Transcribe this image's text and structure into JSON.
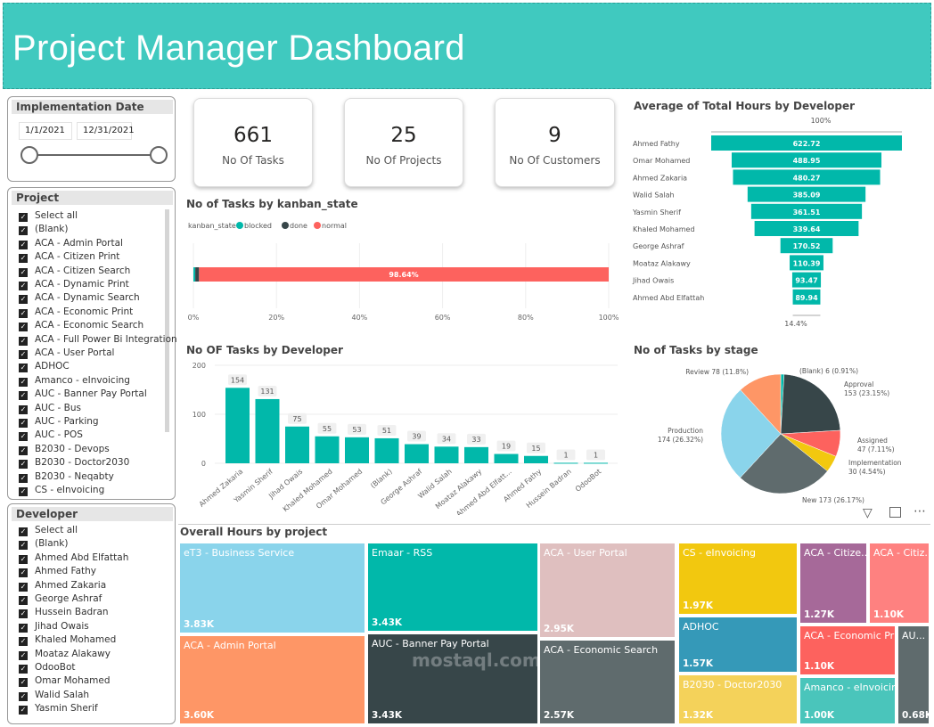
{
  "header": {
    "title": "Project Manager Dashboard",
    "color": "#40c9bf"
  },
  "date_slicer": {
    "title": "Implementation Date",
    "start": "1/1/2021",
    "end": "12/31/2021"
  },
  "project_slicer": {
    "title": "Project",
    "items": [
      "Select all",
      "(Blank)",
      "ACA - Admin Portal",
      "ACA - Citizen Print",
      "ACA - Citizen Search",
      "ACA - Dynamic Print",
      "ACA - Dynamic Search",
      "ACA - Economic Print",
      "ACA - Economic Search",
      "ACA - Full Power Bi Integration",
      "ACA - User Portal",
      "ADHOC",
      "Amanco - eInvoicing",
      "AUC - Banner Pay Portal",
      "AUC - Bus",
      "AUC - Parking",
      "AUC - POS",
      "B2030 - Devops",
      "B2030 - Doctor2030",
      "B2030 - Neqabty",
      "CS - eInvoicing"
    ]
  },
  "developer_slicer": {
    "title": "Developer",
    "items": [
      "Select all",
      "(Blank)",
      "Ahmed Abd Elfattah",
      "Ahmed Fathy",
      "Ahmed Zakaria",
      "George Ashraf",
      "Hussein Badran",
      "Jihad Owais",
      "Khaled Mohamed",
      "Moataz Alakawy",
      "OdooBot",
      "Omar Mohamed",
      "Walid Salah",
      "Yasmin Sherif"
    ]
  },
  "kpis": [
    {
      "value": "661",
      "label": "No Of Tasks"
    },
    {
      "value": "25",
      "label": "No Of Projects"
    },
    {
      "value": "9",
      "label": "No Of Customers"
    }
  ],
  "chart_data": [
    {
      "type": "bar",
      "orientation": "horizontal-stacked-100",
      "title": "No of Tasks by kanban_state",
      "legend_title": "kanban_state",
      "legend_position": "top-left",
      "series": [
        {
          "name": "blocked",
          "value_pct": 0.45,
          "color": "#01b8aa"
        },
        {
          "name": "done",
          "value_pct": 0.91,
          "color": "#374649"
        },
        {
          "name": "normal",
          "value_pct": 98.64,
          "color": "#fd625e"
        }
      ],
      "data_label": "98.64%",
      "ticks": [
        "0%",
        "20%",
        "40%",
        "60%",
        "80%",
        "100%"
      ],
      "xlim": [
        0,
        100
      ]
    },
    {
      "type": "bar",
      "title": "No OF Tasks by Developer",
      "categories": [
        "Ahmed Zakaria",
        "Yasmin Sherif",
        "Jihad Owais",
        "Khaled Mohamed",
        "Omar Mohamed",
        "(Blank)",
        "George Ashraf",
        "Walid Salah",
        "Moataz Alakawy",
        "Ahmed Abd Elfatt...",
        "Ahmed Fathy",
        "Hussein Badran",
        "OdooBot"
      ],
      "values": [
        154,
        131,
        75,
        55,
        53,
        51,
        39,
        34,
        33,
        19,
        15,
        1,
        1
      ],
      "ylim": [
        0,
        200
      ],
      "yticks": [
        "0",
        "100",
        "200"
      ],
      "color": "#01b8aa",
      "grid": true
    },
    {
      "type": "funnel",
      "title": "Average of Total Hours by Developer",
      "categories": [
        "Ahmed Fathy",
        "Omar Mohamed",
        "Ahmed Zakaria",
        "Walid Salah",
        "Yasmin Sherif",
        "Khaled Mohamed",
        "George Ashraf",
        "Moataz Alakawy",
        "Jihad Owais",
        "Ahmed Abd Elfattah"
      ],
      "values": [
        622.72,
        488.95,
        480.27,
        385.09,
        361.51,
        339.64,
        170.52,
        110.39,
        93.47,
        89.94
      ],
      "labels": [
        "622.72",
        "488.95",
        "480.27",
        "385.09",
        "361.51",
        "339.64",
        "170.52",
        "110.39",
        "93.47",
        "89.94"
      ],
      "top_pct": "100%",
      "bottom_pct": "14.4%",
      "color": "#01b8aa"
    },
    {
      "type": "pie",
      "title": "No of Tasks by stage",
      "slices": [
        {
          "name": "(Blank)",
          "value": 6,
          "label": "(Blank) 6 (0.91%)",
          "color": "#01b8aa"
        },
        {
          "name": "Approval",
          "value": 153,
          "label1": "Approval",
          "label2": "153 (23.15%)",
          "color": "#374649"
        },
        {
          "name": "Assigned",
          "value": 47,
          "label1": "Assigned",
          "label2": "47 (7.11%)",
          "color": "#fd625e"
        },
        {
          "name": "Implementation",
          "value": 30,
          "label1": "Implementation",
          "label2": "30 (4.54%)",
          "color": "#f2c80f"
        },
        {
          "name": "New",
          "value": 173,
          "label": "New 173 (26.17%)",
          "color": "#5f6b6d"
        },
        {
          "name": "Production",
          "value": 174,
          "label1": "Production",
          "label2": "174 (26.32%)",
          "color": "#8ad4eb"
        },
        {
          "name": "Review",
          "value": 78,
          "label": "Review 78 (11.8%)",
          "color": "#fe9666"
        }
      ]
    },
    {
      "type": "treemap",
      "title": "Overall Hours by project",
      "items": [
        {
          "name": "eT3 - Business Service",
          "value": "3.83K",
          "color": "#8ad4eb"
        },
        {
          "name": "ACA - Admin Portal",
          "value": "3.60K",
          "color": "#fe9666"
        },
        {
          "name": "Emaar - RSS",
          "value": "3.43K",
          "color": "#01b8aa"
        },
        {
          "name": "AUC - Banner Pay Portal",
          "value": "3.43K",
          "color": "#374649"
        },
        {
          "name": "ACA - User Portal",
          "value": "2.95K",
          "color": "#dfbfbf"
        },
        {
          "name": "ACA - Economic Search",
          "value": "2.57K",
          "color": "#5f6b6d"
        },
        {
          "name": "CS - eInvoicing",
          "value": "1.97K",
          "color": "#f2c80f"
        },
        {
          "name": "ADHOC",
          "value": "1.57K",
          "color": "#3599b8"
        },
        {
          "name": "B2030 - Doctor2030",
          "value": "1.32K",
          "color": "#f4d25a"
        },
        {
          "name": "ACA - Citize...",
          "value": "1.27K",
          "color": "#a66999"
        },
        {
          "name": "ACA - Citiz...",
          "value": "1.10K",
          "color": "#fe8180"
        },
        {
          "name": "ACA - Economic Pri...",
          "value": "1.10K",
          "color": "#fd625e"
        },
        {
          "name": "Amanco - eInvoicing",
          "value": "1.00K",
          "color": "#4ac5bb"
        },
        {
          "name": "AU...",
          "value": "0.68K",
          "color": "#5f6b6d"
        }
      ]
    }
  ],
  "watermark": {
    "text": "mostaql.com"
  }
}
